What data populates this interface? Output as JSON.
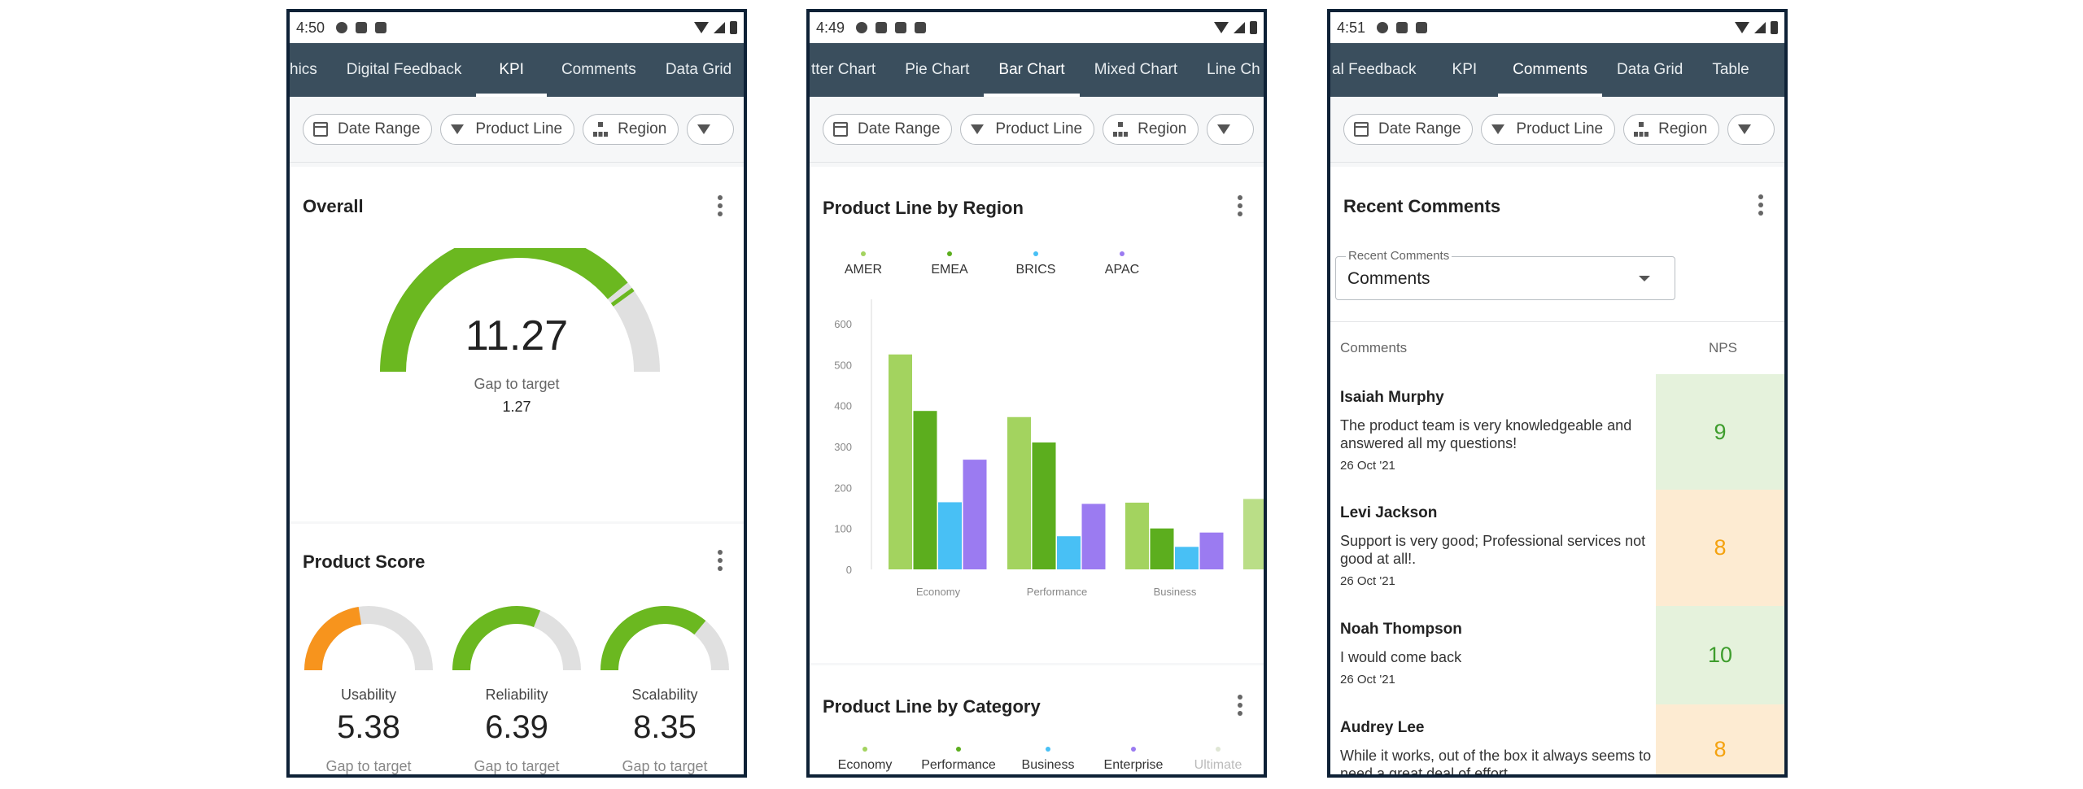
{
  "phone1": {
    "status_time": "4:50",
    "tabs": [
      "hics",
      "Digital Feedback",
      "KPI",
      "Comments",
      "Data Grid"
    ],
    "active_tab": "KPI",
    "filters": [
      "Date Range",
      "Product Line",
      "Region"
    ],
    "overall": {
      "title": "Overall",
      "value": "11.27",
      "gap_label": "Gap to target",
      "gap_value": "1.27",
      "progress_fraction": 0.78,
      "color": "#6bb820"
    },
    "product_score": {
      "title": "Product Score",
      "items": [
        {
          "label": "Usability",
          "value": "5.38",
          "gap_label": "Gap to target",
          "progress_fraction": 0.45,
          "color": "#f7941d"
        },
        {
          "label": "Reliability",
          "value": "6.39",
          "gap_label": "Gap to target",
          "progress_fraction": 0.62,
          "color": "#6bb820"
        },
        {
          "label": "Scalability",
          "value": "8.35",
          "gap_label": "Gap to target",
          "progress_fraction": 0.72,
          "color": "#6bb820"
        }
      ]
    }
  },
  "phone2": {
    "status_time": "4:49",
    "tabs": [
      "tter Chart",
      "Pie Chart",
      "Bar Chart",
      "Mixed Chart",
      "Line Ch"
    ],
    "active_tab": "Bar Chart",
    "filters": [
      "Date Range",
      "Product Line",
      "Region"
    ],
    "bar_card_title": "Product Line by Region",
    "category_card_title": "Product Line by Category",
    "category_legend": [
      {
        "name": "Economy",
        "color": "#a3d35f"
      },
      {
        "name": "Performance",
        "color": "#5cae1e"
      },
      {
        "name": "Business",
        "color": "#48c0f5"
      },
      {
        "name": "Enterprise",
        "color": "#9b7bf1"
      },
      {
        "name": "Ultimate",
        "color": "#dfe6d5"
      }
    ]
  },
  "chart_data": {
    "type": "bar",
    "title": "Product Line by Region",
    "categories": [
      "Economy",
      "Performance",
      "Business"
    ],
    "ylim": [
      0,
      600
    ],
    "yticks": [
      0,
      100,
      200,
      300,
      400,
      500,
      600
    ],
    "grid": false,
    "legend_position": "top",
    "series": [
      {
        "name": "AMER",
        "color": "#a3d35f",
        "values": [
          525,
          372,
          163
        ]
      },
      {
        "name": "EMEA",
        "color": "#5cae1e",
        "values": [
          387,
          310,
          100
        ]
      },
      {
        "name": "BRICS",
        "color": "#48c0f5",
        "values": [
          164,
          81,
          55
        ]
      },
      {
        "name": "APAC",
        "color": "#9b7bf1",
        "values": [
          268,
          160,
          90
        ]
      }
    ]
  },
  "phone3": {
    "status_time": "4:51",
    "tabs": [
      "al Feedback",
      "KPI",
      "Comments",
      "Data Grid",
      "Table"
    ],
    "active_tab": "Comments",
    "filters": [
      "Date Range",
      "Product Line",
      "Region"
    ],
    "card_title": "Recent Comments",
    "select_label": "Recent Comments",
    "select_value": "Comments",
    "col_comments": "Comments",
    "col_nps": "NPS",
    "rows": [
      {
        "name": "Isaiah Murphy",
        "text": "The product team is very knowledgeable and answered all my questions!",
        "date": "26 Oct '21",
        "nps": "9",
        "bg": "#e5f2dc",
        "fg": "#3e9d2d"
      },
      {
        "name": "Levi Jackson",
        "text": "Support is very good; Professional services not good at all!.",
        "date": "26 Oct '21",
        "nps": "8",
        "bg": "#fdebd2",
        "fg": "#f4a20f"
      },
      {
        "name": "Noah Thompson",
        "text": "I would come back",
        "date": "26 Oct '21",
        "nps": "10",
        "bg": "#e5f2dc",
        "fg": "#3e9d2d"
      },
      {
        "name": "Audrey Lee",
        "text": "While it works, out of the box it always seems to need a great deal of effort..",
        "date": "",
        "nps": "8",
        "bg": "#fdebd2",
        "fg": "#f4a20f"
      }
    ]
  }
}
